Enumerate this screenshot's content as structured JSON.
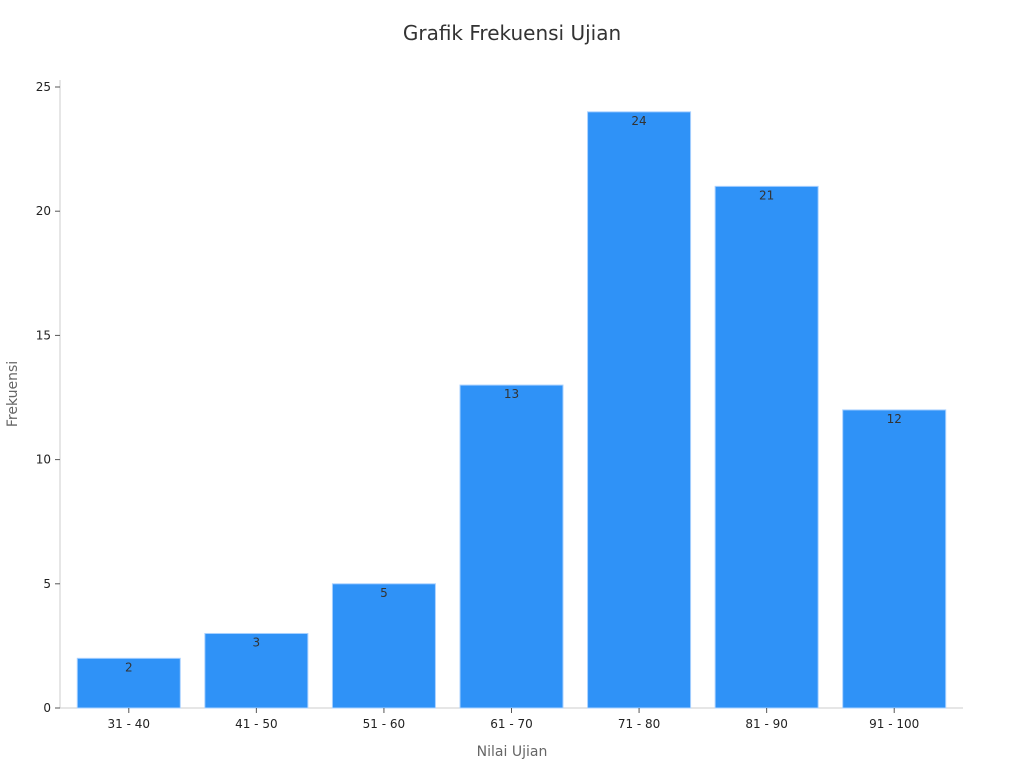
{
  "chart_data": {
    "type": "bar",
    "title": "Grafik Frekuensi Ujian",
    "xlabel": "Nilai Ujian",
    "ylabel": "Frekuensi",
    "categories": [
      "31 - 40",
      "41 - 50",
      "51 - 60",
      "61 - 70",
      "71 - 80",
      "81 - 90",
      "91 - 100"
    ],
    "values": [
      2,
      3,
      5,
      13,
      24,
      21,
      12
    ],
    "ylim": [
      0,
      25
    ],
    "yticks": [
      0,
      5,
      10,
      15,
      20,
      25
    ],
    "grid": false,
    "bar_color": "#2f92f7",
    "data_labels": true
  }
}
